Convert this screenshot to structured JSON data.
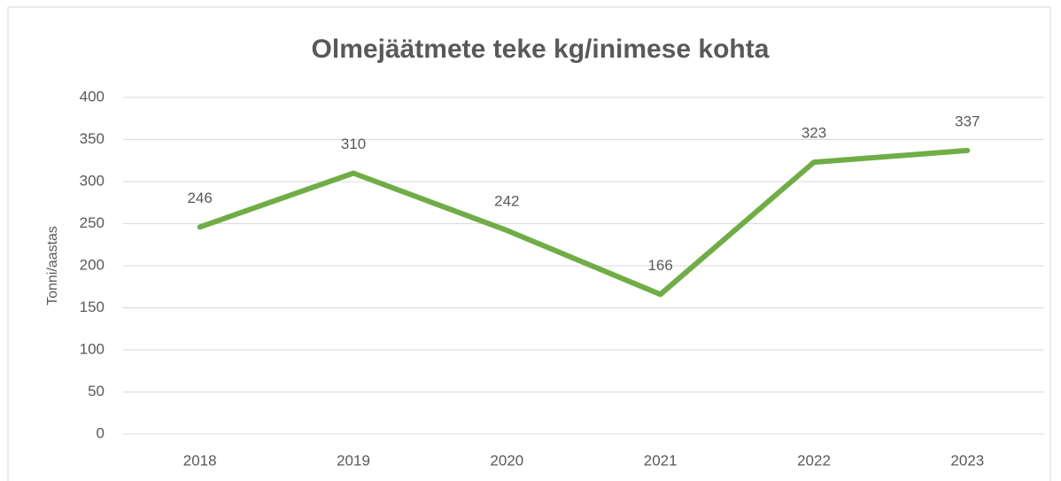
{
  "chart_data": {
    "type": "line",
    "title": "Olmejäätmete teke kg/inimese kohta",
    "y_label": "Tonni/aastas",
    "categories": [
      "2018",
      "2019",
      "2020",
      "2021",
      "2022",
      "2023"
    ],
    "values": [
      246,
      310,
      242,
      166,
      323,
      337
    ],
    "color": "#70ad47",
    "ylim": [
      0,
      400
    ],
    "yticks": [
      0,
      50,
      100,
      150,
      200,
      250,
      300,
      350,
      400
    ],
    "grid": true
  }
}
